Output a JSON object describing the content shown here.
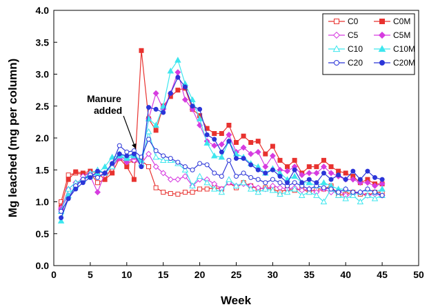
{
  "chart_data": {
    "type": "line",
    "title": "",
    "xlabel": "Week",
    "ylabel": "Mg leached (mg per column)",
    "xlim": [
      0,
      50
    ],
    "ylim": [
      0.0,
      4.0
    ],
    "x_ticks": [
      "0",
      "5",
      "10",
      "15",
      "20",
      "25",
      "30",
      "35",
      "40",
      "45",
      "50"
    ],
    "y_ticks": [
      "0.0",
      "0.5",
      "1.0",
      "1.5",
      "2.0",
      "2.5",
      "3.0",
      "3.5",
      "4.0"
    ],
    "grid": false,
    "legend_position": "top-right",
    "annotation": {
      "lines": [
        "Manure",
        "added"
      ],
      "points_to": {
        "x": 11.5,
        "y": 1.55
      }
    },
    "series": [
      {
        "name": "C0",
        "color": "#e8322f",
        "marker": "square",
        "filled": false,
        "x": [
          1,
          2,
          3,
          4,
          5,
          6,
          7,
          8,
          9,
          10,
          11,
          12,
          13,
          14,
          15,
          16,
          17,
          18,
          19,
          20,
          21,
          22,
          23,
          24,
          25,
          26,
          27,
          28,
          29,
          30,
          31,
          32,
          33,
          34,
          35,
          36,
          37,
          38,
          39,
          40,
          41,
          42,
          43,
          44,
          45
        ],
        "y": [
          1.0,
          1.42,
          1.45,
          1.43,
          1.45,
          1.3,
          1.35,
          1.55,
          1.7,
          1.6,
          1.65,
          1.65,
          1.55,
          1.22,
          1.15,
          1.13,
          1.12,
          1.15,
          1.15,
          1.2,
          1.2,
          1.22,
          1.2,
          1.3,
          1.22,
          1.3,
          1.25,
          1.2,
          1.22,
          1.2,
          1.15,
          1.2,
          1.18,
          1.2,
          1.15,
          1.2,
          1.2,
          1.25,
          1.1,
          1.12,
          1.15,
          1.12,
          1.1,
          1.15,
          1.15
        ]
      },
      {
        "name": "C0M",
        "color": "#e8322f",
        "marker": "square",
        "filled": true,
        "x": [
          1,
          2,
          3,
          4,
          5,
          6,
          7,
          8,
          9,
          10,
          11,
          12,
          13,
          14,
          15,
          16,
          17,
          18,
          19,
          20,
          21,
          22,
          23,
          24,
          25,
          26,
          27,
          28,
          29,
          30,
          31,
          32,
          33,
          34,
          35,
          36,
          37,
          38,
          39,
          40,
          41,
          42,
          43,
          44,
          45
        ],
        "y": [
          0.92,
          1.35,
          1.47,
          1.45,
          1.48,
          1.45,
          1.35,
          1.45,
          1.68,
          1.55,
          1.35,
          3.37,
          2.3,
          2.12,
          2.5,
          2.65,
          2.75,
          2.78,
          2.45,
          2.35,
          2.15,
          2.07,
          2.07,
          2.2,
          1.93,
          2.03,
          1.93,
          1.95,
          1.75,
          1.87,
          1.65,
          1.55,
          1.65,
          1.45,
          1.55,
          1.55,
          1.65,
          1.55,
          1.48,
          1.45,
          1.4,
          1.3,
          1.35,
          1.28,
          1.28
        ]
      },
      {
        "name": "C5",
        "color": "#d63ce0",
        "marker": "diamond",
        "filled": false,
        "x": [
          1,
          2,
          3,
          4,
          5,
          6,
          7,
          8,
          9,
          10,
          11,
          12,
          13,
          14,
          15,
          16,
          17,
          18,
          19,
          20,
          21,
          22,
          23,
          24,
          25,
          26,
          27,
          28,
          29,
          30,
          31,
          32,
          33,
          34,
          35,
          36,
          37,
          38,
          39,
          40,
          41,
          42,
          43,
          44,
          45
        ],
        "y": [
          0.9,
          1.1,
          1.25,
          1.4,
          1.45,
          1.4,
          1.45,
          1.55,
          1.72,
          1.65,
          1.65,
          1.6,
          1.75,
          1.55,
          1.45,
          1.35,
          1.35,
          1.4,
          1.25,
          1.35,
          1.35,
          1.28,
          1.2,
          1.3,
          1.25,
          1.28,
          1.25,
          1.22,
          1.2,
          1.25,
          1.22,
          1.2,
          1.22,
          1.18,
          1.2,
          1.15,
          1.2,
          1.15,
          1.18,
          1.1,
          1.12,
          1.15,
          1.1,
          1.12,
          1.1
        ]
      },
      {
        "name": "C5M",
        "color": "#d63ce0",
        "marker": "diamond",
        "filled": true,
        "x": [
          1,
          2,
          3,
          4,
          5,
          6,
          7,
          8,
          9,
          10,
          11,
          12,
          13,
          14,
          15,
          16,
          17,
          18,
          19,
          20,
          21,
          22,
          23,
          24,
          25,
          26,
          27,
          28,
          29,
          30,
          31,
          32,
          33,
          34,
          35,
          36,
          37,
          38,
          39,
          40,
          41,
          42,
          43,
          44,
          45
        ],
        "y": [
          0.88,
          1.2,
          1.3,
          1.35,
          1.4,
          1.15,
          1.45,
          1.55,
          1.68,
          1.62,
          1.7,
          1.62,
          2.3,
          2.7,
          2.45,
          2.7,
          3.03,
          2.6,
          2.45,
          2.2,
          1.95,
          1.88,
          1.9,
          2.05,
          1.78,
          1.85,
          1.75,
          1.78,
          1.55,
          1.72,
          1.5,
          1.48,
          1.55,
          1.42,
          1.45,
          1.45,
          1.55,
          1.45,
          1.4,
          1.35,
          1.35,
          1.3,
          1.3,
          1.25,
          1.28
        ]
      },
      {
        "name": "C10",
        "color": "#3de6ee",
        "marker": "triangle",
        "filled": false,
        "x": [
          1,
          2,
          3,
          4,
          5,
          6,
          7,
          8,
          9,
          10,
          11,
          12,
          13,
          14,
          15,
          16,
          17,
          18,
          19,
          20,
          21,
          22,
          23,
          24,
          25,
          26,
          27,
          28,
          29,
          30,
          31,
          32,
          33,
          34,
          35,
          36,
          37,
          38,
          39,
          40,
          41,
          42,
          43,
          44,
          45
        ],
        "y": [
          0.85,
          1.2,
          1.3,
          1.35,
          1.45,
          1.5,
          1.45,
          1.55,
          1.75,
          1.7,
          1.75,
          1.6,
          2.1,
          1.7,
          1.65,
          1.65,
          1.6,
          1.5,
          1.25,
          1.4,
          1.3,
          1.2,
          1.15,
          1.35,
          1.25,
          1.3,
          1.2,
          1.15,
          1.2,
          1.18,
          1.12,
          1.15,
          1.2,
          1.1,
          1.15,
          1.1,
          1.0,
          1.2,
          1.1,
          1.05,
          1.1,
          1.0,
          1.1,
          1.05,
          1.1
        ]
      },
      {
        "name": "C10M",
        "color": "#3de6ee",
        "marker": "triangle",
        "filled": true,
        "x": [
          1,
          2,
          3,
          4,
          5,
          6,
          7,
          8,
          9,
          10,
          11,
          12,
          13,
          14,
          15,
          16,
          17,
          18,
          19,
          20,
          21,
          22,
          23,
          24,
          25,
          26,
          27,
          28,
          29,
          30,
          31,
          32,
          33,
          34,
          35,
          36,
          37,
          38,
          39,
          40,
          41,
          42,
          43,
          44,
          45
        ],
        "y": [
          0.7,
          1.1,
          1.25,
          1.35,
          1.4,
          1.45,
          1.55,
          1.7,
          1.72,
          1.68,
          1.72,
          1.65,
          2.3,
          2.2,
          2.5,
          3.05,
          3.22,
          2.85,
          2.6,
          2.3,
          1.92,
          1.72,
          1.7,
          1.95,
          1.75,
          1.7,
          1.6,
          1.55,
          1.45,
          1.52,
          1.45,
          1.35,
          1.4,
          1.3,
          1.3,
          1.25,
          1.3,
          1.25,
          1.2,
          1.2,
          1.15,
          1.15,
          1.2,
          1.15,
          1.2
        ]
      },
      {
        "name": "C20",
        "color": "#2b35d8",
        "marker": "circle",
        "filled": false,
        "x": [
          1,
          2,
          3,
          4,
          5,
          6,
          7,
          8,
          9,
          10,
          11,
          12,
          13,
          14,
          15,
          16,
          17,
          18,
          19,
          20,
          21,
          22,
          23,
          24,
          25,
          26,
          27,
          28,
          29,
          30,
          31,
          32,
          33,
          34,
          35,
          36,
          37,
          38,
          39,
          40,
          41,
          42,
          43,
          44,
          45
        ],
        "y": [
          0.85,
          1.05,
          1.25,
          1.35,
          1.42,
          1.38,
          1.45,
          1.6,
          1.88,
          1.78,
          1.8,
          1.7,
          1.98,
          1.8,
          1.72,
          1.68,
          1.62,
          1.55,
          1.5,
          1.6,
          1.58,
          1.45,
          1.4,
          1.65,
          1.4,
          1.45,
          1.38,
          1.35,
          1.3,
          1.35,
          1.3,
          1.25,
          1.3,
          1.25,
          1.2,
          1.25,
          1.22,
          1.2,
          1.15,
          1.2,
          1.15,
          1.15,
          1.2,
          1.15,
          1.1
        ]
      },
      {
        "name": "C20M",
        "color": "#2b35d8",
        "marker": "circle",
        "filled": true,
        "x": [
          1,
          2,
          3,
          4,
          5,
          6,
          7,
          8,
          9,
          10,
          11,
          12,
          13,
          14,
          15,
          16,
          17,
          18,
          19,
          20,
          21,
          22,
          23,
          24,
          25,
          26,
          27,
          28,
          29,
          30,
          31,
          32,
          33,
          34,
          35,
          36,
          37,
          38,
          39,
          40,
          41,
          42,
          43,
          44,
          45
        ],
        "y": [
          0.75,
          1.05,
          1.2,
          1.3,
          1.38,
          1.48,
          1.45,
          1.6,
          1.75,
          1.72,
          1.75,
          1.55,
          2.48,
          2.45,
          2.4,
          2.7,
          2.95,
          2.8,
          2.5,
          2.45,
          2.05,
          1.98,
          1.78,
          1.95,
          1.68,
          1.68,
          1.58,
          1.5,
          1.45,
          1.5,
          1.4,
          1.3,
          1.5,
          1.3,
          1.35,
          1.3,
          1.45,
          1.35,
          1.42,
          1.35,
          1.48,
          1.35,
          1.48,
          1.38,
          1.35
        ]
      }
    ]
  }
}
